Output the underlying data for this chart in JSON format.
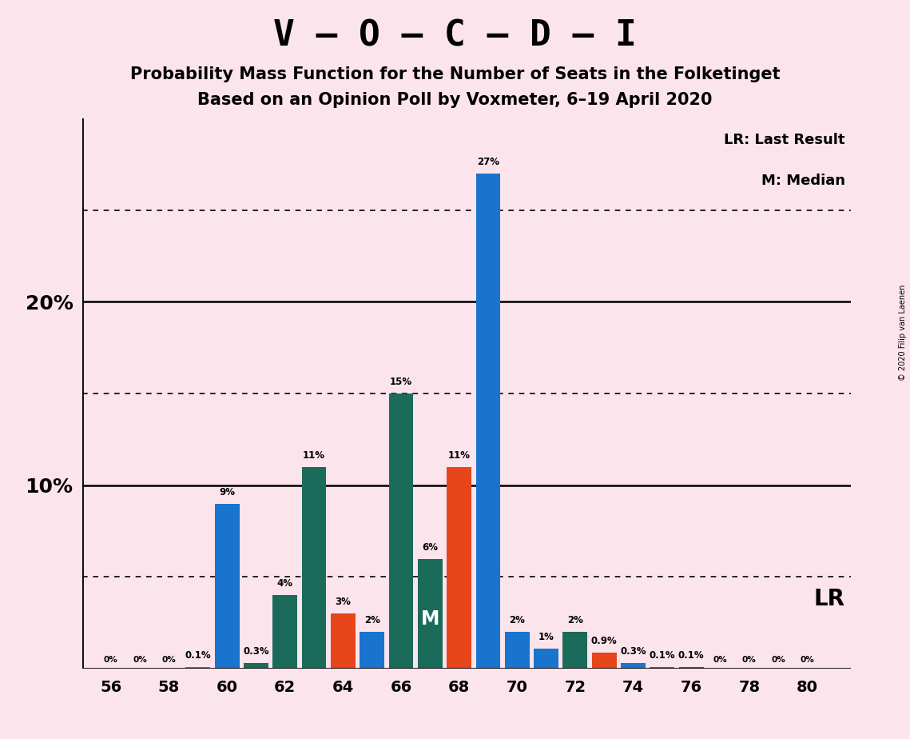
{
  "title_main": "V – O – C – D – I",
  "title_sub1": "Probability Mass Function for the Number of Seats in the Folketinget",
  "title_sub2": "Based on an Opinion Poll by Voxmeter, 6–19 April 2020",
  "copyright": "© 2020 Filip van Laenen",
  "background_color": "#fce4ec",
  "bar_color_blue": "#1874CD",
  "bar_color_teal": "#1a6b5a",
  "bar_color_orange": "#e8451a",
  "seats": [
    56,
    57,
    58,
    59,
    60,
    61,
    62,
    63,
    64,
    65,
    66,
    67,
    68,
    69,
    70,
    71,
    72,
    73,
    74,
    75,
    76,
    77,
    78,
    79,
    80
  ],
  "values": [
    0.0,
    0.0,
    0.0,
    0.1,
    9.0,
    0.3,
    4.0,
    11.0,
    3.0,
    2.0,
    15.0,
    6.0,
    11.0,
    27.0,
    2.0,
    1.1,
    2.0,
    0.9,
    0.3,
    0.1,
    0.1,
    0.0,
    0.0,
    0.0,
    0.0
  ],
  "colors": [
    "blue",
    "blue",
    "blue",
    "orange",
    "blue",
    "teal",
    "teal",
    "teal",
    "orange",
    "blue",
    "teal",
    "teal",
    "orange",
    "blue",
    "blue",
    "blue",
    "teal",
    "orange",
    "blue",
    "blue",
    "teal",
    "blue",
    "blue",
    "blue",
    "blue"
  ],
  "median_seat": 67,
  "lr_seat": 69,
  "xlabel_seats": [
    56,
    58,
    60,
    62,
    64,
    66,
    68,
    70,
    72,
    74,
    76,
    78,
    80
  ],
  "legend_text1": "LR: Last Result",
  "legend_text2": "M: Median",
  "lr_label": "LR",
  "ylim": [
    0,
    30
  ]
}
